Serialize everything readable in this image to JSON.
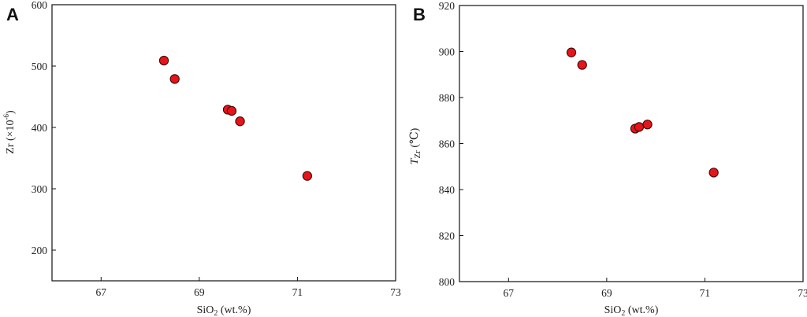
{
  "chart_data": [
    {
      "type": "scatter",
      "panel_label": "A",
      "xlabel": "SiO2 (wt.%)",
      "ylabel": "Zr (×10-6)",
      "xlim": [
        66,
        73
      ],
      "ylim": [
        150,
        600
      ],
      "x_ticks": [
        67,
        69,
        71,
        73
      ],
      "y_ticks": [
        200,
        300,
        400,
        500,
        600
      ],
      "x_tick_labels": [
        "67",
        "69",
        "71",
        "73"
      ],
      "y_tick_labels": [
        "200",
        "300",
        "400",
        "500",
        "600"
      ],
      "grid": false,
      "marker_color": "#e8141a",
      "points": [
        {
          "x": 68.28,
          "y": 509
        },
        {
          "x": 68.5,
          "y": 479
        },
        {
          "x": 69.58,
          "y": 429
        },
        {
          "x": 69.66,
          "y": 427
        },
        {
          "x": 69.83,
          "y": 410
        },
        {
          "x": 71.2,
          "y": 321
        }
      ]
    },
    {
      "type": "scatter",
      "panel_label": "B",
      "xlabel": "SiO2 (wt.%)",
      "ylabel": "Tzr (℃)",
      "xlim": [
        66,
        73
      ],
      "ylim": [
        800,
        920
      ],
      "x_ticks": [
        67,
        69,
        71,
        73
      ],
      "y_ticks": [
        800,
        820,
        840,
        860,
        880,
        900,
        920
      ],
      "x_tick_labels": [
        "67",
        "69",
        "71",
        "73"
      ],
      "y_tick_labels": [
        "800",
        "820",
        "840",
        "860",
        "880",
        "900",
        "920"
      ],
      "grid": false,
      "marker_color": "#e8141a",
      "points": [
        {
          "x": 68.28,
          "y": 899.6
        },
        {
          "x": 68.5,
          "y": 894.2
        },
        {
          "x": 69.58,
          "y": 866.5
        },
        {
          "x": 69.66,
          "y": 867.2
        },
        {
          "x": 69.83,
          "y": 868.3
        },
        {
          "x": 71.18,
          "y": 847.4
        }
      ]
    }
  ]
}
